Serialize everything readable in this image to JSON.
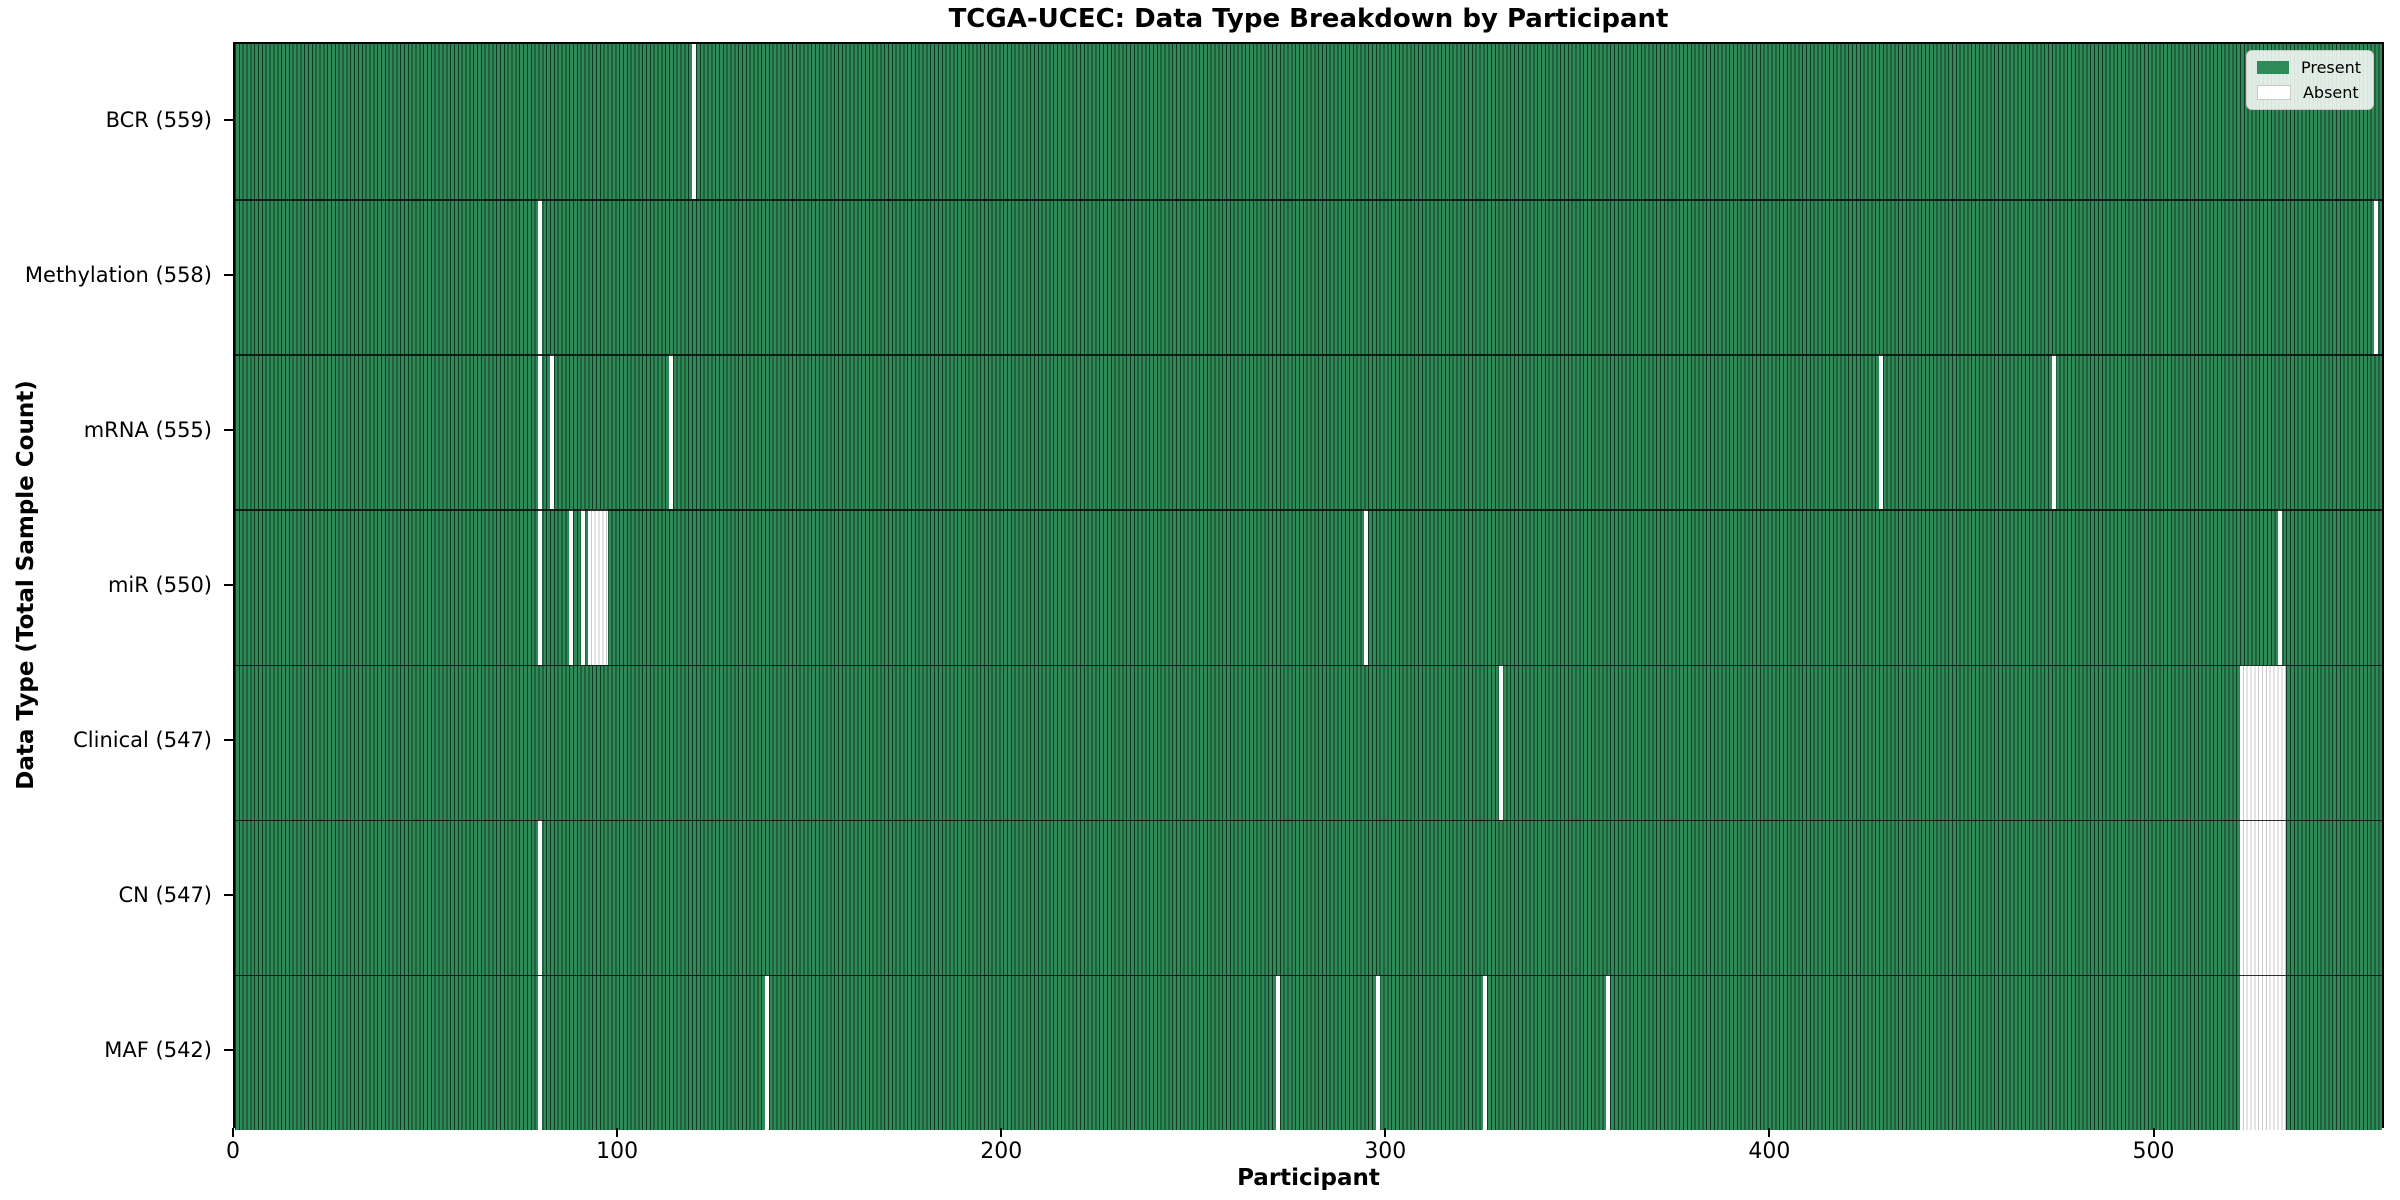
{
  "title": "TCGA-UCEC: Data Type Breakdown by Participant",
  "x_axis": {
    "label": "Participant",
    "ticks": [
      0,
      100,
      200,
      300,
      400,
      500
    ]
  },
  "y_axis": {
    "label": "Data Type (Total Sample Count)"
  },
  "legend": {
    "present_label": "Present",
    "absent_label": "Absent"
  },
  "colors": {
    "present_fill": "#2e8b57",
    "bar_edge": "rgba(0,0,0,0.6)",
    "absent_fill": "#ffffff",
    "absent_edge": "#c9c9c9"
  },
  "chart_data": {
    "type": "heatmap",
    "title": "TCGA-UCEC: Data Type Breakdown by Participant",
    "xlabel": "Participant",
    "ylabel": "Data Type (Total Sample Count)",
    "legend_entries": [
      "Present",
      "Absent"
    ],
    "legend_position": "upper right",
    "total_participants": 560,
    "x_ticks": [
      0,
      100,
      200,
      300,
      400,
      500
    ],
    "xlim": [
      0,
      560
    ],
    "grid": false,
    "rows": [
      {
        "label": "BCR (559)",
        "data_type": "BCR",
        "present_count": 559,
        "absent_participants": [
          119
        ]
      },
      {
        "label": "Methylation (558)",
        "data_type": "Methylation",
        "present_count": 558,
        "absent_participants": [
          79,
          557
        ]
      },
      {
        "label": "mRNA (555)",
        "data_type": "mRNA",
        "present_count": 555,
        "absent_participants": [
          79,
          82,
          113,
          428,
          473
        ]
      },
      {
        "label": "miR (550)",
        "data_type": "miR",
        "present_count": 550,
        "absent_participants": [
          79,
          87,
          90,
          92,
          93,
          94,
          95,
          96,
          294,
          532
        ]
      },
      {
        "label": "Clinical (547)",
        "data_type": "Clinical",
        "present_count": 547,
        "absent_participants": [
          329,
          522,
          523,
          524,
          525,
          526,
          527,
          528,
          529,
          530,
          531,
          532,
          533
        ]
      },
      {
        "label": "CN (547)",
        "data_type": "CN",
        "present_count": 547,
        "absent_participants": [
          79,
          522,
          523,
          524,
          525,
          526,
          527,
          528,
          529,
          530,
          531,
          532,
          533
        ]
      },
      {
        "label": "MAF (542)",
        "data_type": "MAF",
        "present_count": 542,
        "absent_participants": [
          79,
          138,
          271,
          297,
          325,
          357,
          522,
          523,
          524,
          525,
          526,
          527,
          528,
          529,
          530,
          531,
          532,
          533
        ]
      }
    ]
  }
}
